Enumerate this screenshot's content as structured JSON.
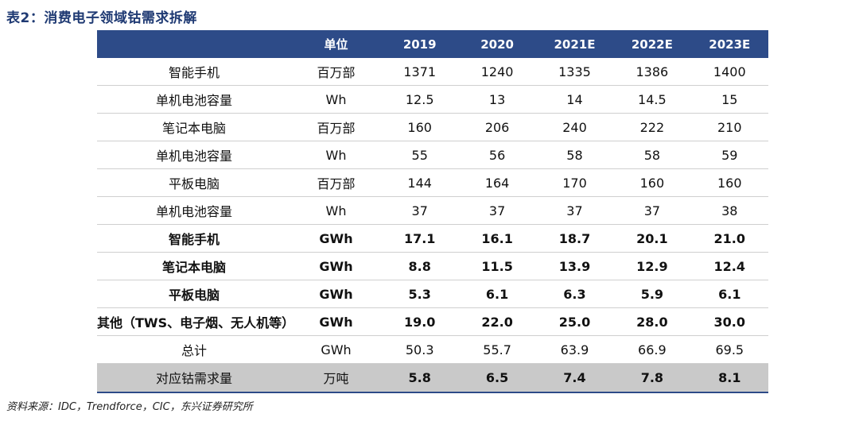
{
  "title": "表2：消费电子领域钴需求拆解",
  "table": {
    "headers": [
      "",
      "单位",
      "2019",
      "2020",
      "2021E",
      "2022E",
      "2023E"
    ],
    "rows": [
      {
        "style": "normal",
        "label": "智能手机",
        "unit": "百万部",
        "values": [
          "1371",
          "1240",
          "1335",
          "1386",
          "1400"
        ]
      },
      {
        "style": "normal",
        "label": "单机电池容量",
        "unit": "Wh",
        "values": [
          "12.5",
          "13",
          "14",
          "14.5",
          "15"
        ]
      },
      {
        "style": "normal",
        "label": "笔记本电脑",
        "unit": "百万部",
        "values": [
          "160",
          "206",
          "240",
          "222",
          "210"
        ]
      },
      {
        "style": "normal",
        "label": "单机电池容量",
        "unit": "Wh",
        "values": [
          "55",
          "56",
          "58",
          "58",
          "59"
        ]
      },
      {
        "style": "normal",
        "label": "平板电脑",
        "unit": "百万部",
        "values": [
          "144",
          "164",
          "170",
          "160",
          "160"
        ]
      },
      {
        "style": "normal",
        "label": "单机电池容量",
        "unit": "Wh",
        "values": [
          "37",
          "37",
          "37",
          "37",
          "38"
        ]
      },
      {
        "style": "bold",
        "label": "智能手机",
        "unit": "GWh",
        "values": [
          "17.1",
          "16.1",
          "18.7",
          "20.1",
          "21.0"
        ]
      },
      {
        "style": "bold",
        "label": "笔记本电脑",
        "unit": "GWh",
        "values": [
          "8.8",
          "11.5",
          "13.9",
          "12.9",
          "12.4"
        ]
      },
      {
        "style": "bold",
        "label": "平板电脑",
        "unit": "GWh",
        "values": [
          "5.3",
          "6.1",
          "6.3",
          "5.9",
          "6.1"
        ]
      },
      {
        "style": "bold",
        "label": "其他（TWS、电子烟、无人机等）",
        "unit": "GWh",
        "values": [
          "19.0",
          "22.0",
          "25.0",
          "28.0",
          "30.0"
        ]
      },
      {
        "style": "normal",
        "label": "总计",
        "unit": "GWh",
        "values": [
          "50.3",
          "55.7",
          "63.9",
          "66.9",
          "69.5"
        ]
      },
      {
        "style": "gray",
        "label": "对应钴需求量",
        "unit": "万吨",
        "values": [
          "5.8",
          "6.5",
          "7.4",
          "7.8",
          "8.1"
        ]
      }
    ]
  },
  "source": "资料来源：IDC，Trendforce，CIC，东兴证券研究所"
}
